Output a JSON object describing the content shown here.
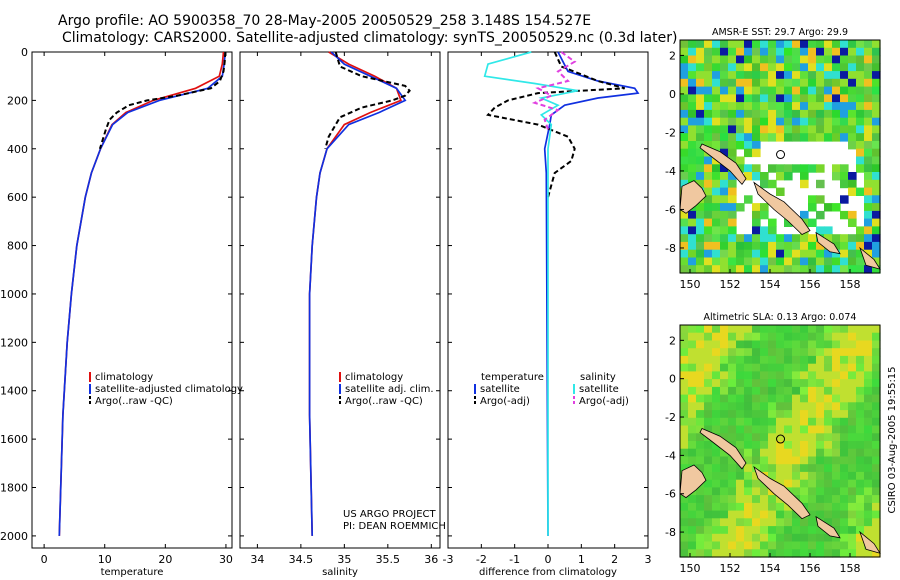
{
  "header": {
    "line1": "Argo profile: AO 5900358_70 28-May-2005 20050529_258 3.148S 154.527E",
    "line2": "Climatology: CARS2000. Satellite-adjusted climatology: synTS_20050529.nc (0.3d later)"
  },
  "colors": {
    "climatology": "#e01010",
    "satellite": "#1030e0",
    "argo": "#000000",
    "salinity_sat": "#30e8e8",
    "salinity_argo": "#e040e0",
    "land": "#f0c8a0"
  },
  "chart_data": [
    {
      "type": "line",
      "name": "temperature",
      "xlabel": "temperature",
      "xlim": [
        -2,
        31
      ],
      "xticks": [
        0,
        10,
        20,
        30
      ],
      "ylim": [
        2050,
        0
      ],
      "yticks": [
        0,
        200,
        400,
        600,
        800,
        1000,
        1200,
        1400,
        1600,
        1800,
        2000
      ],
      "legend": [
        "climatology",
        "satellite-adjusted climatology",
        "Argo(..raw -QC)"
      ],
      "series": [
        {
          "name": "climatology",
          "color": "climatology",
          "dash": "",
          "depth": [
            0,
            50,
            100,
            150,
            200,
            250,
            300,
            400,
            500,
            600,
            800,
            1000,
            1200,
            1500,
            2000
          ],
          "values": [
            29.6,
            29.4,
            28.9,
            25,
            18,
            13.5,
            11.2,
            9.3,
            7.8,
            6.8,
            5.4,
            4.5,
            3.8,
            3.1,
            2.5
          ]
        },
        {
          "name": "satellite-adjusted climatology",
          "color": "satellite",
          "dash": "",
          "depth": [
            0,
            50,
            100,
            150,
            200,
            250,
            300,
            400,
            500,
            600,
            800,
            1000,
            1200,
            1500,
            2000
          ],
          "values": [
            29.9,
            29.7,
            29.4,
            27,
            19,
            13.8,
            11.3,
            9.3,
            7.8,
            6.8,
            5.4,
            4.5,
            3.8,
            3.1,
            2.5
          ]
        },
        {
          "name": "Argo(..raw -QC)",
          "color": "argo",
          "dash": "5,3",
          "depth": [
            0,
            40,
            80,
            120,
            150,
            180,
            200,
            220,
            250,
            280,
            320,
            400
          ],
          "values": [
            29.9,
            29.8,
            29.6,
            29.0,
            27.5,
            22,
            17,
            14,
            12,
            10.8,
            10.2,
            9.2
          ]
        }
      ]
    },
    {
      "type": "line",
      "name": "salinity",
      "xlabel": "salinity",
      "xlim": [
        33.8,
        36.1
      ],
      "xticks": [
        34,
        34.5,
        35,
        35.5,
        36
      ],
      "ylim": [
        2050,
        0
      ],
      "legend": [
        "climatology",
        "satellite adj. clim.",
        "Argo(..raw -QC)"
      ],
      "annotation": [
        "US ARGO PROJECT",
        "PI: DEAN ROEMMICH"
      ],
      "series": [
        {
          "name": "climatology",
          "color": "climatology",
          "dash": "",
          "depth": [
            0,
            50,
            100,
            150,
            200,
            250,
            300,
            400,
            500,
            600,
            800,
            1000,
            1500,
            2000
          ],
          "values": [
            34.82,
            35.05,
            35.35,
            35.6,
            35.65,
            35.3,
            35.0,
            34.8,
            34.72,
            34.68,
            34.63,
            34.6,
            34.6,
            34.63
          ]
        },
        {
          "name": "satellite adj. clim.",
          "color": "satellite",
          "dash": "",
          "depth": [
            0,
            50,
            100,
            150,
            200,
            250,
            300,
            400,
            500,
            600,
            800,
            1000,
            1500,
            2000
          ],
          "values": [
            34.85,
            35.0,
            35.3,
            35.6,
            35.7,
            35.4,
            35.05,
            34.8,
            34.72,
            34.68,
            34.63,
            34.6,
            34.6,
            34.63
          ]
        },
        {
          "name": "Argo(..raw -QC)",
          "color": "argo",
          "dash": "5,3",
          "depth": [
            0,
            60,
            100,
            140,
            160,
            180,
            200,
            230,
            270,
            300,
            350,
            400
          ],
          "values": [
            34.9,
            34.95,
            35.2,
            35.7,
            35.75,
            35.7,
            35.55,
            35.2,
            34.95,
            34.9,
            34.82,
            34.78
          ]
        }
      ]
    },
    {
      "type": "line",
      "name": "difference",
      "xlabel": "difference from climatology",
      "xlim": [
        -3,
        3
      ],
      "xticks": [
        -3,
        -2,
        -1,
        0,
        1,
        2,
        3
      ],
      "ylim": [
        2050,
        0
      ],
      "legend_left": [
        "temperature",
        "satellite",
        "Argo(-adj)"
      ],
      "legend_right": [
        "salinity",
        "satellite",
        "Argo(-adj)"
      ],
      "series": [
        {
          "name": "temperature satellite",
          "color": "satellite",
          "dash": "",
          "depth": [
            0,
            80,
            120,
            150,
            170,
            190,
            220,
            260,
            300,
            400,
            500,
            2000
          ],
          "values": [
            0.3,
            0.6,
            1.5,
            2.6,
            2.7,
            1.5,
            0.5,
            0.1,
            0.05,
            -0.1,
            -0.05,
            0
          ]
        },
        {
          "name": "temperature Argo(-adj)",
          "color": "argo",
          "dash": "5,3",
          "depth": [
            0,
            60,
            120,
            150,
            170,
            200,
            230,
            260,
            300,
            350,
            400,
            450,
            500,
            600
          ],
          "values": [
            0.2,
            0.4,
            1.5,
            2.3,
            -0.3,
            -1.2,
            -1.6,
            -1.8,
            -0.3,
            0.6,
            0.8,
            0.7,
            0.2,
            0
          ]
        },
        {
          "name": "salinity satellite",
          "color": "salinity_sat",
          "dash": "",
          "depth": [
            0,
            50,
            100,
            130,
            160,
            190,
            220,
            260,
            300,
            400,
            2000
          ],
          "values": [
            -0.5,
            -1.8,
            -1.9,
            -0.4,
            0.9,
            -0.2,
            0.3,
            -0.2,
            0.1,
            0,
            0
          ]
        },
        {
          "name": "salinity Argo(-adj)",
          "color": "salinity_argo",
          "dash": "5,3",
          "depth": [
            0,
            40,
            80,
            120,
            150,
            180,
            210,
            240,
            280,
            320
          ],
          "values": [
            0.4,
            0.8,
            0.3,
            0.6,
            -0.3,
            0.1,
            -0.4,
            0.3,
            -0.1,
            0
          ]
        }
      ]
    },
    {
      "type": "heatmap",
      "name": "sst_map",
      "title": "AMSR-E SST: 29.7 Argo: 29.9",
      "xlim": [
        149.5,
        159.5
      ],
      "ylim": [
        -9.3,
        2.8
      ],
      "xticks": [
        150,
        152,
        154,
        156,
        158
      ],
      "yticks": [
        2,
        0,
        -2,
        -4,
        -6,
        -8
      ],
      "argo_position": [
        154.527,
        -3.148
      ]
    },
    {
      "type": "heatmap",
      "name": "sla_map",
      "title": "Altimetric SLA: 0.13 Argo: 0.074",
      "xlim": [
        149.5,
        159.5
      ],
      "ylim": [
        -9.3,
        2.8
      ],
      "xticks": [
        150,
        152,
        154,
        156,
        158
      ],
      "yticks": [
        2,
        0,
        -2,
        -4,
        -6,
        -8
      ],
      "argo_position": [
        154.527,
        -3.148
      ]
    }
  ],
  "footer_stamp": "CSIRO 03-Aug-2005 19:55:15"
}
